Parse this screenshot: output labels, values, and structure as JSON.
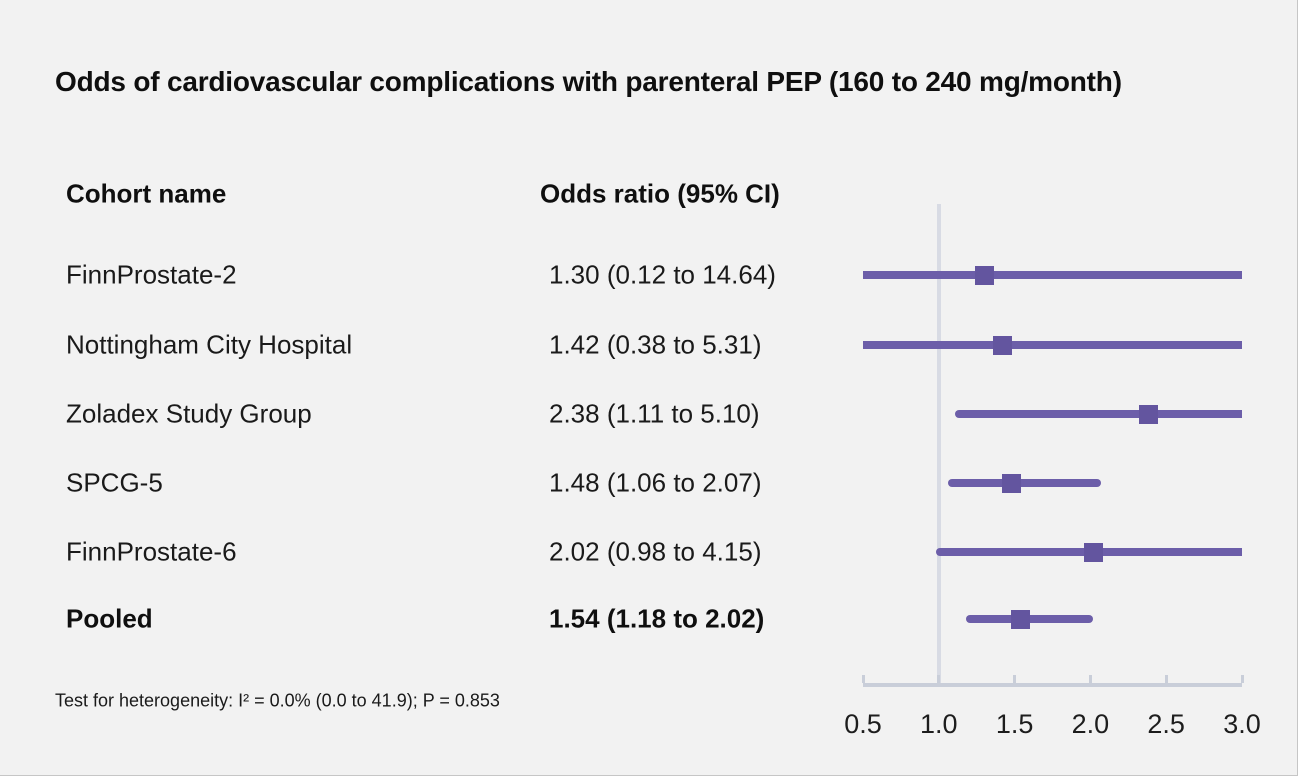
{
  "title": "Odds of cardiovascular complications with parenteral PEP (160 to 240 mg/month)",
  "table": {
    "col1_header": "Cohort name",
    "col2_header": "Odds ratio (95% CI)"
  },
  "footnote": "Test for heterogeneity: I² = 0.0% (0.0 to 41.9); P = 0.853",
  "colors": {
    "background": "#f2f2f2",
    "text": "#161616",
    "ci_line": "#6c5ea9",
    "marker": "#63559f",
    "axis": "#c9ced9",
    "reference_line": "#d8dbe4"
  },
  "chart_data": {
    "type": "forest",
    "title": "Odds of cardiovascular complications with parenteral PEP (160 to 240 mg/month)",
    "xlabel": "Odds ratio",
    "axis": {
      "min": 0.5,
      "max": 3.0,
      "ticks": [
        "0.5",
        "1.0",
        "1.5",
        "2.0",
        "2.5",
        "3.0"
      ],
      "tick_values": [
        0.5,
        1.0,
        1.5,
        2.0,
        2.5,
        3.0
      ],
      "reference_line": 1.0,
      "grid": false
    },
    "studies": [
      {
        "name": "FinnProstate-2",
        "or": 1.3,
        "ci_low": 0.12,
        "ci_high": 14.64,
        "label": "1.30 (0.12 to 14.64)",
        "bold": false
      },
      {
        "name": "Nottingham City Hospital",
        "or": 1.42,
        "ci_low": 0.38,
        "ci_high": 5.31,
        "label": "1.42 (0.38 to 5.31)",
        "bold": false
      },
      {
        "name": "Zoladex Study Group",
        "or": 2.38,
        "ci_low": 1.11,
        "ci_high": 5.1,
        "label": "2.38 (1.11 to 5.10)",
        "bold": false
      },
      {
        "name": "SPCG-5",
        "or": 1.48,
        "ci_low": 1.06,
        "ci_high": 2.07,
        "label": "1.48 (1.06 to 2.07)",
        "bold": false
      },
      {
        "name": "FinnProstate-6",
        "or": 2.02,
        "ci_low": 0.98,
        "ci_high": 4.15,
        "label": "2.02 (0.98 to 4.15)",
        "bold": false
      },
      {
        "name": "Pooled",
        "or": 1.54,
        "ci_low": 1.18,
        "ci_high": 2.02,
        "label": "1.54 (1.18 to 2.02)",
        "bold": true
      }
    ],
    "heterogeneity": "Test for heterogeneity: I² = 0.0% (0.0 to 41.9); P = 0.853"
  }
}
